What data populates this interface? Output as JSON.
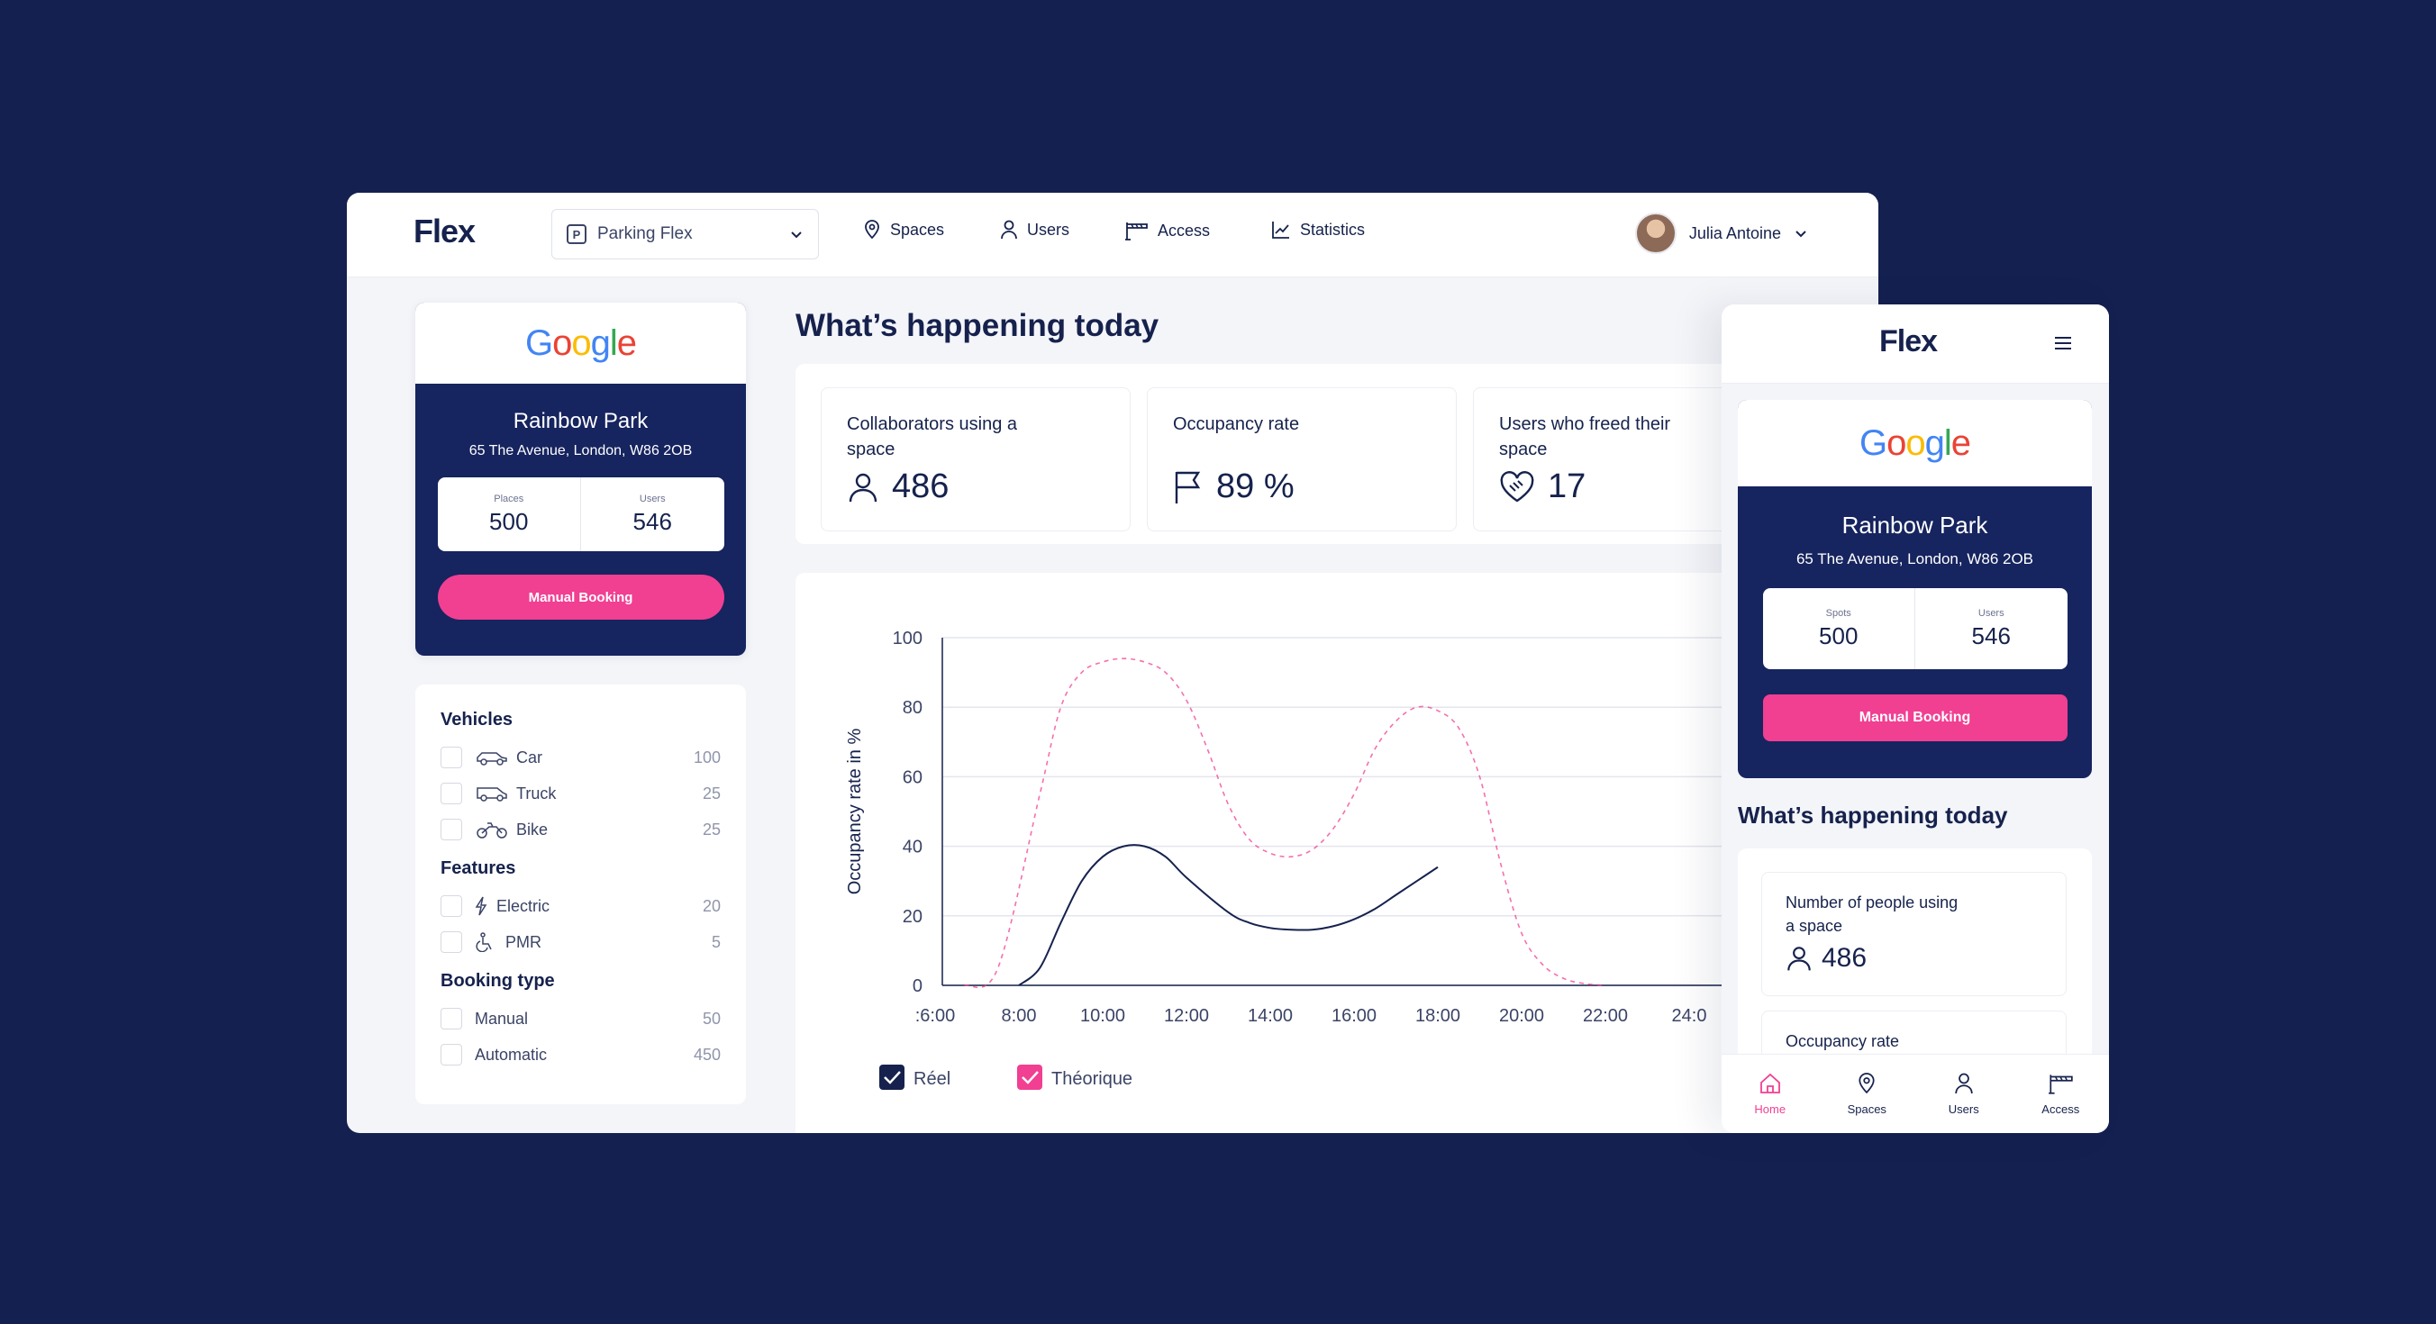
{
  "brand": {
    "logo": "Flex"
  },
  "nav": {
    "site_select": "Parking Flex",
    "items": [
      {
        "label": "Spaces",
        "icon": "location-pin-icon"
      },
      {
        "label": "Users",
        "icon": "user-icon"
      },
      {
        "label": "Access",
        "icon": "barrier-icon"
      },
      {
        "label": "Statistics",
        "icon": "chart-line-icon"
      }
    ],
    "user_name": "Julia Antoine"
  },
  "org": {
    "company": "Google",
    "name": "Rainbow Park",
    "address": "65 The Avenue, London, W86 2OB",
    "places_label": "Places",
    "places_value": "500",
    "users_label": "Users",
    "users_value": "546",
    "manual_booking": "Manual Booking"
  },
  "filters": {
    "vehicles_title": "Vehicles",
    "vehicles": [
      {
        "label": "Car",
        "count": "100"
      },
      {
        "label": "Truck",
        "count": "25"
      },
      {
        "label": "Bike",
        "count": "25"
      }
    ],
    "features_title": "Features",
    "features": [
      {
        "label": "Electric",
        "count": "20"
      },
      {
        "label": "PMR",
        "count": "5"
      }
    ],
    "booking_title": "Booking type",
    "booking": [
      {
        "label": "Manual",
        "count": "50"
      },
      {
        "label": "Automatic",
        "count": "450"
      }
    ]
  },
  "main": {
    "title": "What’s happening today",
    "kpis": [
      {
        "label": "Collaborators using a space",
        "value": "486"
      },
      {
        "label": "Occupancy rate",
        "value": "89 %"
      },
      {
        "label": "Users who freed their space",
        "value": "17"
      }
    ]
  },
  "chart_data": {
    "type": "line",
    "ylabel": "Occupancy rate in %",
    "ylim": [
      0,
      100
    ],
    "yticks": [
      "100",
      "80",
      "60",
      "40",
      "20",
      "0"
    ],
    "xticks": [
      ":6:00",
      "8:00",
      "10:00",
      "12:00",
      "14:00",
      "16:00",
      "18:00",
      "20:00",
      "22:00",
      "24:0"
    ],
    "series": [
      {
        "name": "Réel",
        "color": "#16224d",
        "dashed": false,
        "points": [
          [
            8,
            0
          ],
          [
            8.5,
            5
          ],
          [
            9,
            18
          ],
          [
            9.5,
            30
          ],
          [
            10,
            37
          ],
          [
            10.5,
            40
          ],
          [
            11,
            40
          ],
          [
            11.5,
            37
          ],
          [
            12,
            31
          ],
          [
            13,
            21
          ],
          [
            13.5,
            18
          ],
          [
            14,
            16.5
          ],
          [
            14.5,
            16
          ],
          [
            15,
            16
          ],
          [
            15.5,
            17
          ],
          [
            16,
            19
          ],
          [
            16.5,
            22
          ],
          [
            17,
            26
          ],
          [
            17.5,
            30
          ],
          [
            18,
            34
          ]
        ]
      },
      {
        "name": "Théorique",
        "color": "#f13f92",
        "dashed": true,
        "points": [
          [
            6.7,
            0
          ],
          [
            7.5,
            5
          ],
          [
            8.5,
            55
          ],
          [
            9,
            80
          ],
          [
            9.5,
            90
          ],
          [
            10,
            93
          ],
          [
            10.5,
            94
          ],
          [
            11,
            93
          ],
          [
            11.5,
            90
          ],
          [
            12,
            82
          ],
          [
            12.5,
            68
          ],
          [
            13,
            52
          ],
          [
            13.5,
            42
          ],
          [
            14,
            38
          ],
          [
            14.5,
            37
          ],
          [
            15,
            39
          ],
          [
            15.5,
            45
          ],
          [
            16,
            55
          ],
          [
            16.5,
            68
          ],
          [
            17,
            76
          ],
          [
            17.5,
            80
          ],
          [
            18,
            79
          ],
          [
            18.5,
            74
          ],
          [
            19,
            60
          ],
          [
            19.5,
            35
          ],
          [
            20,
            15
          ],
          [
            20.5,
            6
          ],
          [
            21,
            2
          ],
          [
            21.5,
            0.5
          ],
          [
            22,
            0
          ]
        ]
      }
    ],
    "legend": [
      "Réel",
      "Théorique"
    ]
  },
  "mobile": {
    "logo": "Flex",
    "company": "Google",
    "name": "Rainbow Park",
    "address": "65 The Avenue, London, W86 2OB",
    "spots_label": "Spots",
    "spots_value": "500",
    "users_label": "Users",
    "users_value": "546",
    "manual_booking": "Manual Booking",
    "title": "What’s happening today",
    "kpi1_label": "Number of people using a space",
    "kpi1_value": "486",
    "kpi2_label": "Occupancy rate",
    "tabs": [
      {
        "label": "Home",
        "icon": "home-icon"
      },
      {
        "label": "Spaces",
        "icon": "location-pin-icon"
      },
      {
        "label": "Users",
        "icon": "user-icon"
      },
      {
        "label": "Access",
        "icon": "barrier-icon"
      }
    ]
  }
}
